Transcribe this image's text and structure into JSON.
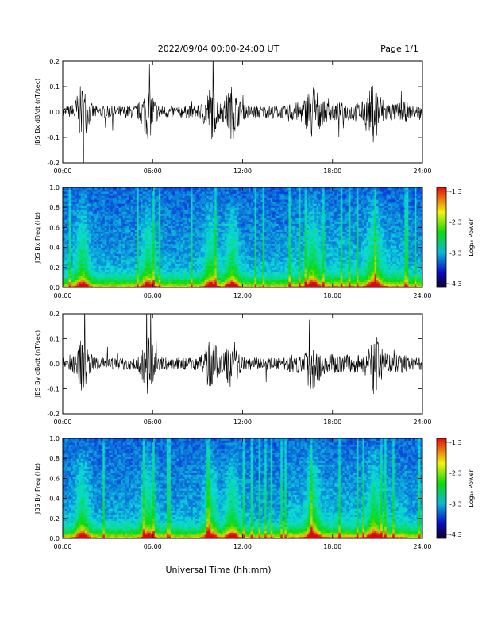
{
  "header": {
    "date_range": "2022/09/04  00:00-24:00 UT",
    "page": "Page 1/1"
  },
  "x_axis": {
    "label": "Universal Time (hh:mm)",
    "ticks": [
      "00:00",
      "06:00",
      "12:00",
      "18:00",
      "24:00"
    ]
  },
  "colorbar": {
    "label": "Log₁₀ Power",
    "ticks": [
      "-1.3",
      "-2.3",
      "-3.3",
      "-4.3"
    ]
  },
  "chart_data": [
    {
      "type": "line",
      "id": "bx_dbdt",
      "ylabel": "JBS Bx dB/dt (nT/sec)",
      "ylim": [
        -0.2,
        0.2
      ],
      "yticks": [
        "0.2",
        "0.1",
        "0.0",
        "-0.1",
        "-0.2"
      ],
      "xlim": [
        0,
        24
      ],
      "bursts_hours": [
        1.3,
        5.7,
        9.9,
        11.3,
        16.7,
        20.8
      ]
    },
    {
      "type": "heatmap",
      "id": "bx_freq",
      "ylabel": "JBS Bx Freq (Hz)",
      "ylim": [
        0.0,
        1.0
      ],
      "yticks": [
        "1.0",
        "0.8",
        "0.6",
        "0.4",
        "0.2",
        "0.0"
      ],
      "xlim": [
        0,
        24
      ],
      "zlim": [
        -4.3,
        -1.3
      ]
    },
    {
      "type": "line",
      "id": "by_dbdt",
      "ylabel": "JBS By dB/dt (nT/sec)",
      "ylim": [
        -0.2,
        0.2
      ],
      "yticks": [
        "0.2",
        "0.1",
        "0.0",
        "-0.1",
        "-0.2"
      ],
      "xlim": [
        0,
        24
      ],
      "bursts_hours": [
        1.3,
        5.7,
        9.9,
        11.3,
        16.7,
        20.8
      ]
    },
    {
      "type": "heatmap",
      "id": "by_freq",
      "ylabel": "JBS By Freq (Hz)",
      "ylim": [
        0.0,
        1.0
      ],
      "yticks": [
        "1.0",
        "0.8",
        "0.6",
        "0.4",
        "0.2",
        "0.0"
      ],
      "xlim": [
        0,
        24
      ],
      "zlim": [
        -4.3,
        -1.3
      ]
    }
  ]
}
